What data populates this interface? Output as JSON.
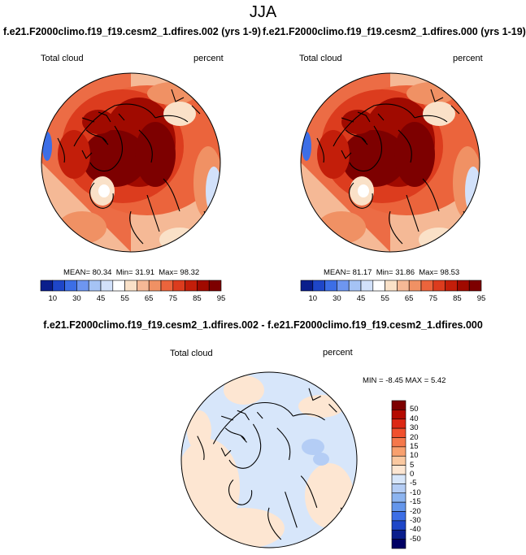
{
  "title": "JJA",
  "panels": [
    {
      "case_title": "f.e21.F2000climo.f19_f19.cesm2_1.dfires.002 (yrs 1-9)",
      "left_label": "Total cloud",
      "right_label": "percent",
      "stats": {
        "mean_label": "MEAN=",
        "mean": "80.34",
        "min_label": "Min=",
        "min": "31.91",
        "max_label": "Max=",
        "max": "98.32"
      }
    },
    {
      "case_title": "f.e21.F2000climo.f19_f19.cesm2_1.dfires.000 (yrs 1-19)",
      "left_label": "Total cloud",
      "right_label": "percent",
      "stats": {
        "mean_label": "MEAN=",
        "mean": "81.17",
        "min_label": "Min=",
        "min": "31.86",
        "max_label": "Max=",
        "max": "98.53"
      }
    }
  ],
  "colorbar_top": {
    "labels": [
      "10",
      "30",
      "45",
      "55",
      "65",
      "75",
      "85",
      "95"
    ],
    "colors": [
      "#0a1e8c",
      "#1e46c8",
      "#3c6ee6",
      "#6e96f0",
      "#a5c3f5",
      "#d2e1fa",
      "#ffffff",
      "#fae1c8",
      "#f5b996",
      "#f09164",
      "#eb643c",
      "#dc3c1e",
      "#c31e0a",
      "#a00a00",
      "#7d0000"
    ]
  },
  "difference": {
    "title": "f.e21.F2000climo.f19_f19.cesm2_1.dfires.002 - f.e21.F2000climo.f19_f19.cesm2_1.dfires.000",
    "left_label": "Total cloud",
    "right_label": "percent",
    "stats": {
      "min_label": "MIN =",
      "min": "-8.45",
      "max_label": "MAX =",
      "max": "5.42"
    }
  },
  "colorbar_diff": {
    "labels": [
      "50",
      "40",
      "30",
      "20",
      "15",
      "10",
      "5",
      "0",
      "-5",
      "-10",
      "-15",
      "-20",
      "-30",
      "-40",
      "-50"
    ],
    "colors": [
      "#7d0000",
      "#b40a00",
      "#dc2814",
      "#f0502d",
      "#f5784b",
      "#f8a06e",
      "#fac8a0",
      "#fde6d2",
      "#d7e6fa",
      "#b4cdf5",
      "#8cb4f0",
      "#6496eb",
      "#3c6ee6",
      "#1e46c8",
      "#0a1e8c",
      "#000064"
    ]
  },
  "colors": {
    "ocean_diff": "#d7e6fa",
    "land_diff": "#fde6d2"
  }
}
